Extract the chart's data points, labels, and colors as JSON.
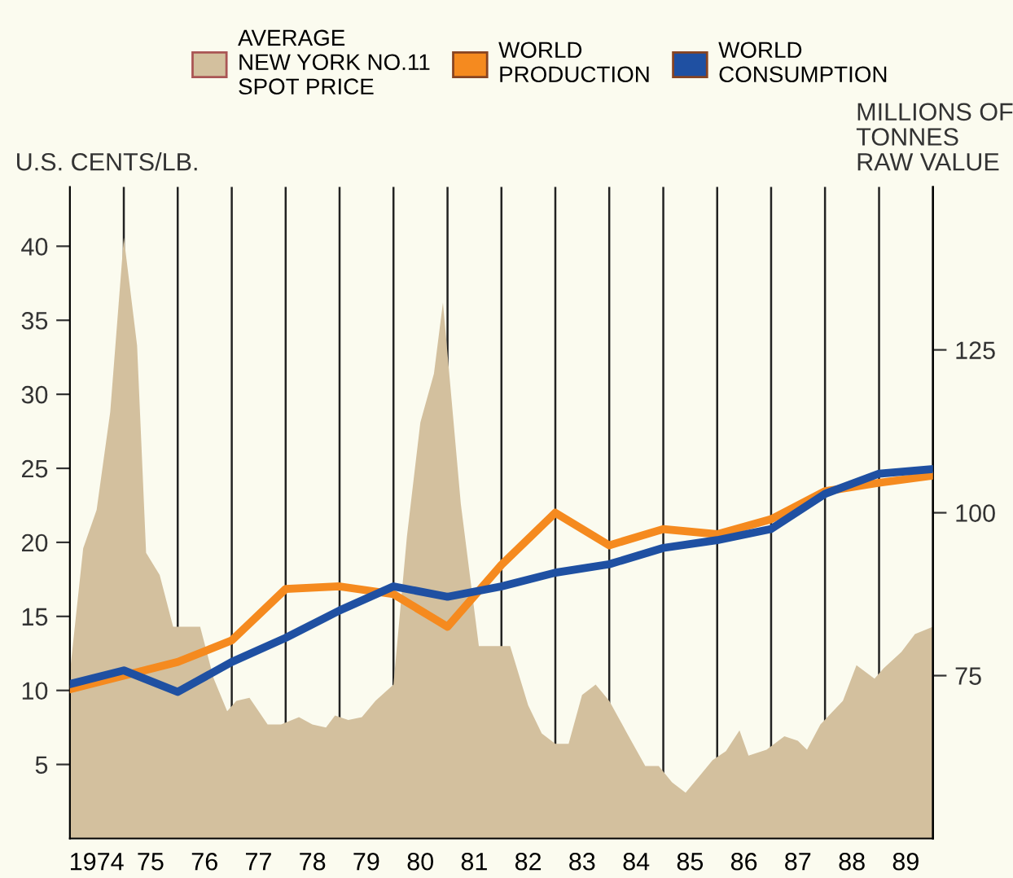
{
  "chart_data": {
    "type": "line",
    "ylabel": "U.S. CENTS/LB.",
    "y2label": "MILLIONS OF\nTONNES\nRAW VALUE",
    "xlim": [
      "1974",
      "1990"
    ],
    "ylim": [
      0,
      44
    ],
    "y2lim": [
      50,
      150
    ],
    "xticks": [
      {
        "value": "1975",
        "label": null
      },
      {
        "value": "1976",
        "label": null
      },
      {
        "value": "1977",
        "label": null
      },
      {
        "value": "1978",
        "label": null
      },
      {
        "value": "1979",
        "label": null
      },
      {
        "value": "1980",
        "label": null
      },
      {
        "value": "1981",
        "label": null
      },
      {
        "value": "1982",
        "label": null
      },
      {
        "value": "1983",
        "label": null
      },
      {
        "value": "1984",
        "label": null
      },
      {
        "value": "1985",
        "label": null
      },
      {
        "value": "1986",
        "label": null
      },
      {
        "value": "1987",
        "label": null
      },
      {
        "value": "1988",
        "label": null
      },
      {
        "value": "1989",
        "label": null
      },
      {
        "value": "1974-07",
        "label": "1974"
      },
      {
        "value": "1975-07",
        "label": "75"
      },
      {
        "value": "1976-07",
        "label": "76"
      },
      {
        "value": "1977-07",
        "label": "77"
      },
      {
        "value": "1978-07",
        "label": "78"
      },
      {
        "value": "1979-07",
        "label": "79"
      },
      {
        "value": "1980-07",
        "label": "80"
      },
      {
        "value": "1981-07",
        "label": "81"
      },
      {
        "value": "1982-07",
        "label": "82"
      },
      {
        "value": "1983-07",
        "label": "83"
      },
      {
        "value": "1984-07",
        "label": "84"
      },
      {
        "value": "1985-07",
        "label": "85"
      },
      {
        "value": "1986-07",
        "label": "86"
      },
      {
        "value": "1987-07",
        "label": "87"
      },
      {
        "value": "1988-07",
        "label": "88"
      },
      {
        "value": "1989-07",
        "label": "89"
      }
    ],
    "yticks": [
      5,
      10,
      15,
      20,
      25,
      30,
      35,
      40
    ],
    "y2ticks": [
      75,
      100,
      125
    ],
    "grid": "x",
    "legend": "top",
    "series": [
      {
        "name": "AVERAGE\nNEW YORK NO.11\nSPOT PRICE",
        "type": "area",
        "color": "#d3c09e",
        "x": [
          "1974-01",
          "1974-04",
          "1974-07",
          "1974-10",
          "1975-01",
          "1975-04",
          "1975-06",
          "1975-09",
          "1975-12",
          "1976-06",
          "1976-09",
          "1976-12",
          "1977-02",
          "1977-05",
          "1977-09",
          "1977-12",
          "1978-04",
          "1978-07",
          "1978-10",
          "1978-12",
          "1979-03",
          "1979-06",
          "1979-09",
          "1980-01",
          "1980-04",
          "1980-07",
          "1980-10",
          "1980-12",
          "1981-04",
          "1981-08",
          "1982-03",
          "1982-07",
          "1982-10",
          "1983-01",
          "1983-04",
          "1983-07",
          "1983-10",
          "1984-01",
          "1984-05",
          "1984-09",
          "1984-12",
          "1985-03",
          "1985-06",
          "1985-09",
          "1985-12",
          "1986-03",
          "1986-06",
          "1986-08",
          "1986-12",
          "1987-04",
          "1987-07",
          "1987-09",
          "1987-12",
          "1988-05",
          "1988-08",
          "1988-12",
          "1989-02",
          "1989-06",
          "1989-09",
          "1990-01"
        ],
        "values": [
          11.2,
          19.6,
          22.2,
          28.8,
          40.6,
          33.3,
          19.3,
          17.8,
          14.3,
          14.3,
          10.8,
          8.6,
          9.3,
          9.5,
          7.7,
          7.7,
          8.2,
          7.7,
          7.5,
          8.3,
          8.0,
          8.2,
          9.3,
          10.4,
          20.4,
          28.1,
          31.4,
          36.2,
          22.6,
          13.0,
          13.0,
          9.0,
          7.1,
          6.4,
          6.4,
          9.7,
          10.4,
          9.3,
          7.1,
          4.9,
          4.9,
          3.8,
          3.1,
          4.2,
          5.3,
          5.9,
          7.3,
          5.6,
          6.0,
          6.9,
          6.6,
          6.0,
          7.7,
          9.3,
          11.7,
          10.8,
          11.5,
          12.6,
          13.8,
          14.3
        ]
      },
      {
        "name": "WORLD\nPRODUCTION",
        "axis": "y2",
        "color": "#f58a1f",
        "x": [
          "1974",
          "1975",
          "1976",
          "1977",
          "1978",
          "1979",
          "1980",
          "1981",
          "1982",
          "1983",
          "1984",
          "1985",
          "1986",
          "1987",
          "1988",
          "1989",
          "1990"
        ],
        "values": [
          72.9,
          75.0,
          77.1,
          80.4,
          88.3,
          88.7,
          87.5,
          82.5,
          92.0,
          100.0,
          95.0,
          97.5,
          96.7,
          99.0,
          103.3,
          104.6,
          105.7
        ]
      },
      {
        "name": "WORLD\nCONSUMPTION",
        "axis": "y2",
        "color": "#1f50a2",
        "x": [
          "1974",
          "1975",
          "1976",
          "1977",
          "1978",
          "1979",
          "1980",
          "1981",
          "1982",
          "1983",
          "1984",
          "1985",
          "1986",
          "1987",
          "1988",
          "1989",
          "1990"
        ],
        "values": [
          73.7,
          75.8,
          72.5,
          77.1,
          80.8,
          85.0,
          88.7,
          87.1,
          88.7,
          90.8,
          92.1,
          94.6,
          95.8,
          97.5,
          102.9,
          106.0,
          106.7
        ]
      }
    ]
  }
}
